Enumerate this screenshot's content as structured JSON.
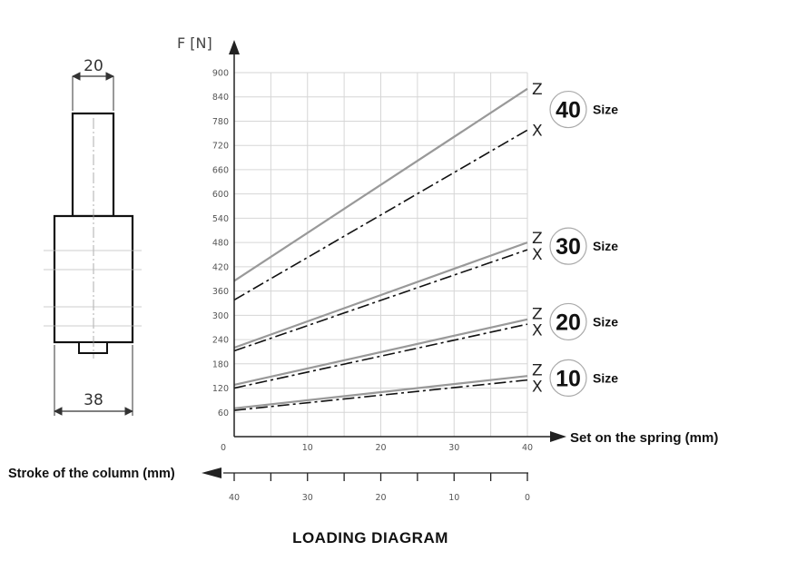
{
  "chart_data": {
    "type": "line",
    "y_axis_label": "F [N]",
    "x_axis_label": "Set on the spring (mm)",
    "x2_axis_label": "Stroke of the column (mm)",
    "footer": "LOADING DIAGRAM",
    "ylim": [
      0,
      900
    ],
    "xlim": [
      0,
      40
    ],
    "y_ticks": [
      "900",
      "840",
      "780",
      "720",
      "660",
      "600",
      "540",
      "480",
      "420",
      "360",
      "300",
      "240",
      "180",
      "120",
      "60"
    ],
    "x_ticks": [
      "0",
      "10",
      "20",
      "30",
      "40"
    ],
    "x2_ticks": [
      "40",
      "30",
      "20",
      "10",
      "0"
    ],
    "grid": true,
    "sizes": [
      {
        "size": "40",
        "label": "Size",
        "series": [
          {
            "curve": "Z",
            "style": "solid",
            "x": [
              0,
              40
            ],
            "y": [
              385,
              860
            ]
          },
          {
            "curve": "X",
            "style": "dash-dot",
            "x": [
              0,
              40
            ],
            "y": [
              338,
              758
            ]
          }
        ]
      },
      {
        "size": "30",
        "label": "Size",
        "series": [
          {
            "curve": "Z",
            "style": "solid",
            "x": [
              0,
              40
            ],
            "y": [
              220,
              480
            ]
          },
          {
            "curve": "X",
            "style": "dash-dot",
            "x": [
              0,
              40
            ],
            "y": [
              212,
              462
            ]
          }
        ]
      },
      {
        "size": "20",
        "label": "Size",
        "series": [
          {
            "curve": "Z",
            "style": "solid",
            "x": [
              0,
              40
            ],
            "y": [
              128,
              290
            ]
          },
          {
            "curve": "X",
            "style": "dash-dot",
            "x": [
              0,
              40
            ],
            "y": [
              120,
              278
            ]
          }
        ]
      },
      {
        "size": "10",
        "label": "Size",
        "series": [
          {
            "curve": "Z",
            "style": "solid",
            "x": [
              0,
              40
            ],
            "y": [
              70,
              150
            ]
          },
          {
            "curve": "X",
            "style": "dash-dot",
            "x": [
              0,
              40
            ],
            "y": [
              65,
              140
            ]
          }
        ]
      }
    ]
  },
  "drawing": {
    "top_dimension": "20",
    "bottom_dimension": "38"
  },
  "colors": {
    "line_z": "#999999",
    "line_x": "#111111",
    "grid": "#d6d6d6"
  }
}
